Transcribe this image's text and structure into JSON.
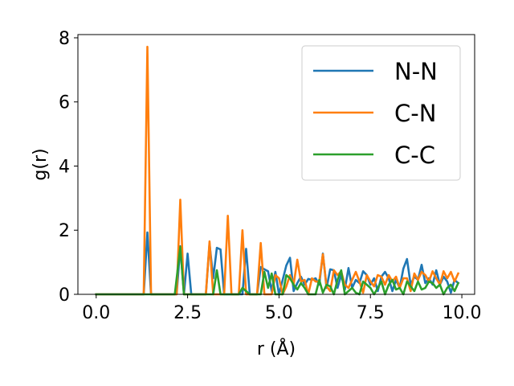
{
  "chart_data": {
    "type": "line",
    "xlabel": "r (Å)",
    "ylabel": "g(r)",
    "xlim": [
      -0.5,
      10.35
    ],
    "ylim": [
      0,
      8.1
    ],
    "xticks": [
      0.0,
      2.5,
      5.0,
      7.5,
      10.0
    ],
    "xtick_labels": [
      "0.0",
      "2.5",
      "5.0",
      "7.5",
      "10.0"
    ],
    "yticks": [
      0,
      2,
      4,
      6,
      8
    ],
    "ytick_labels": [
      "0",
      "2",
      "4",
      "6",
      "8"
    ],
    "grid": false,
    "legend_position": "upper-right",
    "series": [
      {
        "name": "N-N",
        "color": "#1f77b4",
        "points": [
          [
            0.0,
            0.0
          ],
          [
            1.3,
            0.0
          ],
          [
            1.4,
            1.93
          ],
          [
            1.5,
            0.0
          ],
          [
            2.2,
            0.0
          ],
          [
            2.3,
            1.5
          ],
          [
            2.4,
            0.0
          ],
          [
            2.5,
            1.27
          ],
          [
            2.6,
            0.0
          ],
          [
            3.0,
            0.0
          ],
          [
            3.1,
            1.58
          ],
          [
            3.2,
            0.5
          ],
          [
            3.3,
            1.45
          ],
          [
            3.4,
            1.4
          ],
          [
            3.5,
            0.0
          ],
          [
            4.0,
            0.0
          ],
          [
            4.1,
            1.42
          ],
          [
            4.2,
            0.0
          ],
          [
            4.4,
            0.0
          ],
          [
            4.5,
            0.85
          ],
          [
            4.6,
            0.78
          ],
          [
            4.7,
            0.72
          ],
          [
            4.8,
            0.1
          ],
          [
            4.9,
            0.7
          ],
          [
            5.0,
            0.0
          ],
          [
            5.1,
            0.45
          ],
          [
            5.2,
            0.9
          ],
          [
            5.3,
            1.14
          ],
          [
            5.4,
            0.1
          ],
          [
            5.5,
            0.35
          ],
          [
            5.6,
            0.55
          ],
          [
            5.7,
            0.3
          ],
          [
            5.8,
            0.48
          ],
          [
            5.9,
            0.45
          ],
          [
            6.0,
            0.5
          ],
          [
            6.1,
            0.3
          ],
          [
            6.2,
            1.27
          ],
          [
            6.3,
            0.2
          ],
          [
            6.4,
            0.78
          ],
          [
            6.5,
            0.75
          ],
          [
            6.6,
            0.2
          ],
          [
            6.7,
            0.6
          ],
          [
            6.8,
            0.15
          ],
          [
            6.9,
            0.82
          ],
          [
            7.0,
            0.2
          ],
          [
            7.1,
            0.45
          ],
          [
            7.2,
            0.35
          ],
          [
            7.3,
            0.72
          ],
          [
            7.4,
            0.6
          ],
          [
            7.5,
            0.3
          ],
          [
            7.6,
            0.5
          ],
          [
            7.7,
            0.1
          ],
          [
            7.8,
            0.55
          ],
          [
            7.9,
            0.7
          ],
          [
            8.0,
            0.5
          ],
          [
            8.1,
            0.1
          ],
          [
            8.2,
            0.45
          ],
          [
            8.3,
            0.2
          ],
          [
            8.4,
            0.8
          ],
          [
            8.5,
            1.1
          ],
          [
            8.6,
            0.3
          ],
          [
            8.7,
            0.55
          ],
          [
            8.8,
            0.45
          ],
          [
            8.9,
            0.92
          ],
          [
            9.0,
            0.35
          ],
          [
            9.1,
            0.5
          ],
          [
            9.2,
            0.3
          ],
          [
            9.3,
            0.75
          ],
          [
            9.4,
            0.3
          ],
          [
            9.5,
            0.55
          ],
          [
            9.6,
            0.4
          ],
          [
            9.7,
            0.05
          ],
          [
            9.8,
            0.45
          ],
          [
            9.9,
            0.35
          ]
        ]
      },
      {
        "name": "C-N",
        "color": "#ff7f0e",
        "points": [
          [
            0.0,
            0.0
          ],
          [
            1.3,
            0.0
          ],
          [
            1.4,
            7.72
          ],
          [
            1.5,
            0.0
          ],
          [
            2.2,
            0.0
          ],
          [
            2.3,
            2.95
          ],
          [
            2.4,
            0.0
          ],
          [
            3.0,
            0.0
          ],
          [
            3.1,
            1.65
          ],
          [
            3.2,
            0.0
          ],
          [
            3.5,
            0.0
          ],
          [
            3.6,
            2.45
          ],
          [
            3.7,
            0.0
          ],
          [
            3.9,
            0.0
          ],
          [
            4.0,
            2.0
          ],
          [
            4.1,
            0.0
          ],
          [
            4.4,
            0.0
          ],
          [
            4.5,
            1.6
          ],
          [
            4.6,
            0.0
          ],
          [
            4.8,
            0.0
          ],
          [
            4.9,
            0.6
          ],
          [
            5.0,
            0.5
          ],
          [
            5.1,
            0.0
          ],
          [
            5.2,
            0.25
          ],
          [
            5.3,
            0.6
          ],
          [
            5.4,
            0.3
          ],
          [
            5.5,
            1.08
          ],
          [
            5.6,
            0.4
          ],
          [
            5.7,
            0.45
          ],
          [
            5.8,
            0.0
          ],
          [
            5.9,
            0.5
          ],
          [
            6.0,
            0.4
          ],
          [
            6.1,
            0.4
          ],
          [
            6.2,
            1.25
          ],
          [
            6.3,
            0.25
          ],
          [
            6.4,
            0.1
          ],
          [
            6.5,
            0.75
          ],
          [
            6.6,
            0.6
          ],
          [
            6.7,
            0.72
          ],
          [
            6.8,
            0.3
          ],
          [
            6.9,
            0.2
          ],
          [
            7.0,
            0.45
          ],
          [
            7.1,
            0.7
          ],
          [
            7.2,
            0.4
          ],
          [
            7.3,
            0.05
          ],
          [
            7.4,
            0.6
          ],
          [
            7.5,
            0.4
          ],
          [
            7.6,
            0.25
          ],
          [
            7.7,
            0.6
          ],
          [
            7.8,
            0.55
          ],
          [
            7.9,
            0.3
          ],
          [
            8.0,
            0.6
          ],
          [
            8.1,
            0.4
          ],
          [
            8.2,
            0.55
          ],
          [
            8.3,
            0.2
          ],
          [
            8.4,
            0.5
          ],
          [
            8.5,
            0.5
          ],
          [
            8.6,
            0.1
          ],
          [
            8.7,
            0.65
          ],
          [
            8.8,
            0.45
          ],
          [
            8.9,
            0.7
          ],
          [
            9.0,
            0.6
          ],
          [
            9.1,
            0.4
          ],
          [
            9.2,
            0.72
          ],
          [
            9.3,
            0.5
          ],
          [
            9.4,
            0.3
          ],
          [
            9.5,
            0.72
          ],
          [
            9.6,
            0.5
          ],
          [
            9.7,
            0.7
          ],
          [
            9.8,
            0.4
          ],
          [
            9.9,
            0.65
          ]
        ]
      },
      {
        "name": "C-C",
        "color": "#2ca02c",
        "points": [
          [
            0.0,
            0.0
          ],
          [
            2.15,
            0.0
          ],
          [
            2.3,
            1.48
          ],
          [
            2.4,
            0.0
          ],
          [
            3.2,
            0.0
          ],
          [
            3.3,
            0.75
          ],
          [
            3.4,
            0.0
          ],
          [
            3.9,
            0.0
          ],
          [
            4.0,
            0.2
          ],
          [
            4.1,
            0.1
          ],
          [
            4.2,
            0.0
          ],
          [
            4.5,
            0.0
          ],
          [
            4.6,
            0.7
          ],
          [
            4.7,
            0.2
          ],
          [
            4.8,
            0.65
          ],
          [
            4.9,
            0.0
          ],
          [
            5.1,
            0.0
          ],
          [
            5.2,
            0.6
          ],
          [
            5.3,
            0.5
          ],
          [
            5.4,
            0.3
          ],
          [
            5.5,
            0.15
          ],
          [
            5.6,
            0.35
          ],
          [
            5.7,
            0.2
          ],
          [
            5.8,
            0.0
          ],
          [
            6.0,
            0.0
          ],
          [
            6.1,
            0.45
          ],
          [
            6.2,
            0.05
          ],
          [
            6.3,
            0.3
          ],
          [
            6.4,
            0.25
          ],
          [
            6.5,
            0.0
          ],
          [
            6.6,
            0.45
          ],
          [
            6.7,
            0.75
          ],
          [
            6.8,
            0.0
          ],
          [
            7.0,
            0.2
          ],
          [
            7.1,
            0.05
          ],
          [
            7.2,
            0.0
          ],
          [
            7.3,
            0.4
          ],
          [
            7.4,
            0.3
          ],
          [
            7.5,
            0.2
          ],
          [
            7.6,
            0.0
          ],
          [
            7.8,
            0.4
          ],
          [
            7.9,
            0.0
          ],
          [
            8.0,
            0.3
          ],
          [
            8.1,
            0.45
          ],
          [
            8.2,
            0.15
          ],
          [
            8.3,
            0.2
          ],
          [
            8.4,
            0.0
          ],
          [
            8.5,
            0.4
          ],
          [
            8.6,
            0.25
          ],
          [
            8.7,
            0.1
          ],
          [
            8.8,
            0.4
          ],
          [
            8.9,
            0.15
          ],
          [
            9.0,
            0.2
          ],
          [
            9.1,
            0.4
          ],
          [
            9.2,
            0.35
          ],
          [
            9.3,
            0.2
          ],
          [
            9.4,
            0.3
          ],
          [
            9.5,
            0.0
          ],
          [
            9.6,
            0.2
          ],
          [
            9.7,
            0.3
          ],
          [
            9.8,
            0.1
          ],
          [
            9.9,
            0.35
          ]
        ]
      }
    ]
  }
}
